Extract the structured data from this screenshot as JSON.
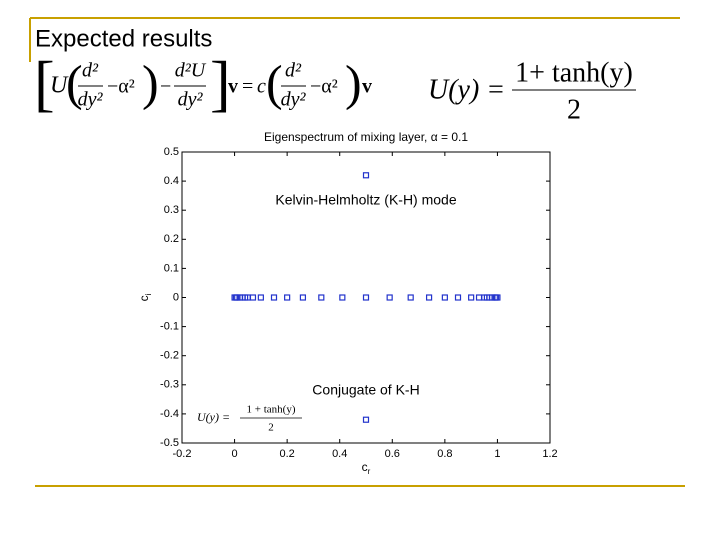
{
  "slide_title": "Expected results",
  "equations": {
    "orr_sommerfeld": {
      "U": "U",
      "frac1_num": "d²",
      "frac1_den": "dy²",
      "minus_alpha1": "−α²",
      "minus": "−",
      "frac2_num": "d²U",
      "frac2_den": "dy²",
      "v1": "v",
      "equals": "=",
      "c": "c",
      "frac3_num": "d²",
      "frac3_den": "dy²",
      "minus_alpha2": "−α²",
      "v2": "v"
    },
    "profile": {
      "lhs": "U(y) =",
      "num": "1+ tanh(y)",
      "den": "2"
    }
  },
  "chart_data": {
    "type": "scatter",
    "title": "Eigenspectrum of mixing layer, α = 0.1",
    "xlabel": "c",
    "xlabel_sub": "r",
    "ylabel": "c",
    "ylabel_sub": "i",
    "x": [
      0,
      0.005,
      0.01,
      0.02,
      0.03,
      0.04,
      0.05,
      0.07,
      0.1,
      0.15,
      0.2,
      0.26,
      0.33,
      0.41,
      0.5,
      0.59,
      0.67,
      0.74,
      0.8,
      0.85,
      0.9,
      0.93,
      0.95,
      0.96,
      0.97,
      0.98,
      0.99,
      0.995,
      1,
      0.5,
      0.5
    ],
    "values": [
      0,
      0,
      0,
      0,
      0,
      0,
      0,
      0,
      0,
      0,
      0,
      0,
      0,
      0,
      0,
      0,
      0,
      0,
      0,
      0,
      0,
      0,
      0,
      0,
      0,
      0,
      0,
      0,
      0,
      0.42,
      -0.42
    ],
    "color": "#2233cc",
    "xlim": [
      -0.2,
      1.2
    ],
    "xticks": [
      -0.2,
      0,
      0.2,
      0.4,
      0.6,
      0.8,
      1,
      1.2
    ],
    "ylim": [
      -0.5,
      0.5
    ],
    "yticks": [
      -0.5,
      -0.4,
      -0.3,
      -0.2,
      -0.1,
      0,
      0.1,
      0.2,
      0.3,
      0.4,
      0.5
    ],
    "annotations": [
      "Kelvin-Helmholtz (K-H) mode",
      "Conjugate of K-H"
    ],
    "inset": {
      "lhs": "U(y) =",
      "num": "1 + tanh(y)",
      "den": "2"
    }
  }
}
